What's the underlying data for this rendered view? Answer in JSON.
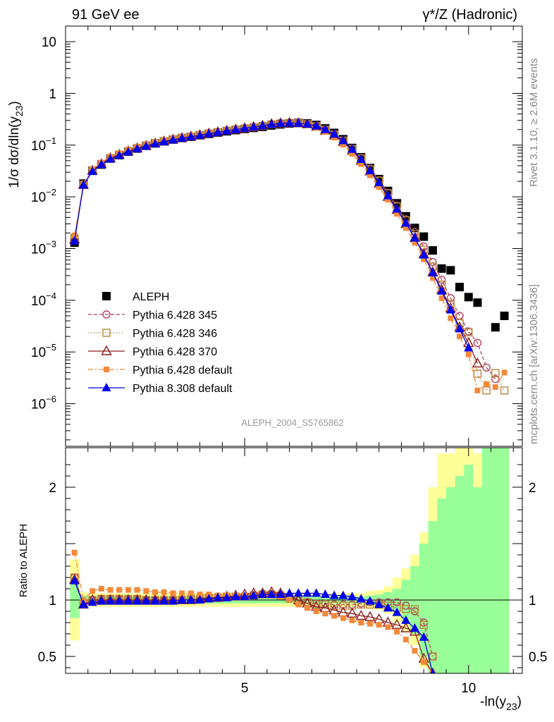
{
  "header": {
    "left": "91 GeV ee",
    "right": "γ*/Z (Hadronic)"
  },
  "side": {
    "version": "Rivet 3.1.10, ≥ 2.6M events",
    "url": "mcplots.cern.ch [arXiv:1306.3436]"
  },
  "watermark": "ALEPH_2004_S5765862",
  "chart_data": [
    {
      "type": "scatter",
      "ylabel": "1/σ  dσ/dln(y23)",
      "yscale": "log",
      "ylim": [
        1.5e-07,
        20
      ],
      "xlim": [
        1,
        11.2
      ],
      "yticks": [
        {
          "v": 10,
          "label": "10"
        },
        {
          "v": 1,
          "label": "1"
        },
        {
          "v": 0.1,
          "label": "10",
          "exp": "−1"
        },
        {
          "v": 0.01,
          "label": "10",
          "exp": "−2"
        },
        {
          "v": 0.001,
          "label": "10",
          "exp": "−3"
        },
        {
          "v": 0.0001,
          "label": "10",
          "exp": "−4"
        },
        {
          "v": 1e-05,
          "label": "10",
          "exp": "−5"
        },
        {
          "v": 1e-06,
          "label": "10",
          "exp": "−6"
        }
      ],
      "x": [
        1.2,
        1.4,
        1.6,
        1.8,
        2.0,
        2.2,
        2.4,
        2.6,
        2.8,
        3.0,
        3.2,
        3.4,
        3.6,
        3.8,
        4.0,
        4.2,
        4.4,
        4.6,
        4.8,
        5.0,
        5.2,
        5.4,
        5.6,
        5.8,
        6.0,
        6.2,
        6.4,
        6.6,
        6.8,
        7.0,
        7.2,
        7.4,
        7.6,
        7.8,
        8.0,
        8.2,
        8.4,
        8.6,
        8.8,
        9.0,
        9.2,
        9.4,
        9.6,
        9.8,
        10.0,
        10.2,
        10.4,
        10.6,
        10.8
      ],
      "series": [
        {
          "name": "ALEPH",
          "color": "#000000",
          "marker": "filled-square",
          "values": [
            0.0013,
            0.018,
            0.032,
            0.042,
            0.055,
            0.064,
            0.075,
            0.086,
            0.097,
            0.108,
            0.118,
            0.128,
            0.137,
            0.145,
            0.155,
            0.165,
            0.175,
            0.185,
            0.195,
            0.205,
            0.215,
            0.225,
            0.24,
            0.252,
            0.262,
            0.268,
            0.262,
            0.245,
            0.21,
            0.172,
            0.13,
            0.088,
            0.058,
            0.036,
            0.022,
            0.013,
            0.0075,
            0.0042,
            0.0025,
            0.0017,
            0.00092,
            0.00041,
            0.00038,
            0.00018,
            0.000115,
            9e-05,
            0,
            3e-05,
            5e-05
          ]
        },
        {
          "name": "Pythia 6.428 345",
          "color": "#b0425c",
          "marker": "open-circle",
          "line": "dashed",
          "values": [
            0.0016,
            0.017,
            0.032,
            0.043,
            0.056,
            0.065,
            0.076,
            0.087,
            0.097,
            0.108,
            0.118,
            0.128,
            0.137,
            0.146,
            0.156,
            0.168,
            0.178,
            0.19,
            0.2,
            0.21,
            0.222,
            0.235,
            0.252,
            0.262,
            0.268,
            0.265,
            0.255,
            0.232,
            0.198,
            0.16,
            0.122,
            0.085,
            0.056,
            0.035,
            0.021,
            0.012,
            0.0068,
            0.0037,
            0.0021,
            0.0011,
            0.00055,
            0.00025,
            0.00011,
            5e-05,
            2.5e-05,
            1.5e-05,
            5e-06,
            3e-06,
            0
          ]
        },
        {
          "name": "Pythia 6.428 346",
          "color": "#b8863a",
          "marker": "open-square",
          "line": "dotted",
          "values": [
            0.0016,
            0.017,
            0.032,
            0.043,
            0.056,
            0.065,
            0.076,
            0.087,
            0.097,
            0.108,
            0.118,
            0.128,
            0.137,
            0.146,
            0.156,
            0.168,
            0.178,
            0.19,
            0.2,
            0.21,
            0.222,
            0.235,
            0.252,
            0.262,
            0.268,
            0.265,
            0.255,
            0.232,
            0.198,
            0.16,
            0.122,
            0.084,
            0.055,
            0.034,
            0.0205,
            0.0117,
            0.0065,
            0.0035,
            0.0019,
            0.00095,
            0.00045,
            0.0002,
            8.5e-05,
            3.6e-05,
            2.4e-05,
            3.8e-06,
            1.8e-06,
            3.9e-06,
            1.8e-06
          ]
        },
        {
          "name": "Pythia 6.428 370",
          "color": "#8b1f1f",
          "marker": "open-triangle",
          "line": "solid",
          "values": [
            0.0015,
            0.017,
            0.032,
            0.043,
            0.056,
            0.065,
            0.076,
            0.087,
            0.097,
            0.108,
            0.118,
            0.128,
            0.137,
            0.146,
            0.156,
            0.168,
            0.178,
            0.19,
            0.2,
            0.212,
            0.224,
            0.238,
            0.255,
            0.265,
            0.27,
            0.265,
            0.253,
            0.228,
            0.192,
            0.154,
            0.115,
            0.078,
            0.05,
            0.031,
            0.018,
            0.01,
            0.0056,
            0.003,
            0.0016,
            0.00078,
            0.00035,
            0.00016,
            7e-05,
            3e-05,
            1.5e-05,
            6e-06,
            0,
            0,
            0
          ]
        },
        {
          "name": "Pythia 6.428 default",
          "color": "#f28a3a",
          "marker": "filled-square-small",
          "line": "dashdot",
          "values": [
            0.0018,
            0.018,
            0.034,
            0.046,
            0.06,
            0.07,
            0.082,
            0.094,
            0.105,
            0.116,
            0.126,
            0.136,
            0.145,
            0.154,
            0.163,
            0.172,
            0.181,
            0.192,
            0.202,
            0.212,
            0.222,
            0.233,
            0.248,
            0.258,
            0.262,
            0.256,
            0.24,
            0.215,
            0.18,
            0.14,
            0.102,
            0.068,
            0.043,
            0.026,
            0.0155,
            0.0088,
            0.0047,
            0.0025,
            0.0013,
            0.00062,
            0.00027,
            0.00011,
            4.5e-05,
            2e-05,
            9e-06,
            1.8e-06,
            2.4e-06,
            2.1e-06,
            4e-06
          ]
        },
        {
          "name": "Pythia 8.308 default",
          "color": "#0000ee",
          "marker": "filled-triangle",
          "line": "solid",
          "values": [
            0.0014,
            0.017,
            0.031,
            0.042,
            0.054,
            0.063,
            0.074,
            0.085,
            0.095,
            0.106,
            0.116,
            0.126,
            0.136,
            0.145,
            0.155,
            0.166,
            0.177,
            0.188,
            0.2,
            0.212,
            0.224,
            0.237,
            0.252,
            0.262,
            0.267,
            0.264,
            0.254,
            0.234,
            0.2,
            0.162,
            0.122,
            0.083,
            0.053,
            0.032,
            0.0188,
            0.0105,
            0.0058,
            0.0031,
            0.0016,
            0.00075,
            0.00034,
            0.00015,
            6.5e-05,
            2.8e-05,
            1.2e-05,
            0,
            0,
            0,
            0
          ]
        }
      ]
    },
    {
      "type": "scatter",
      "ylabel": "Ratio to ALEPH",
      "xlabel": "-ln(y23)",
      "ylim": [
        0.35,
        2.35
      ],
      "xlim": [
        1,
        11.2
      ],
      "yticks": [
        {
          "v": 0.5,
          "label": "0.5"
        },
        {
          "v": 1,
          "label": "1"
        },
        {
          "v": 2,
          "label": "2"
        }
      ],
      "xticks": [
        {
          "v": 5,
          "label": "5"
        },
        {
          "v": 10,
          "label": "10"
        }
      ],
      "uncertainty_bands": {
        "stat_color": "#99ff99",
        "total_color": "#ffff99",
        "bins_halfwidth": 0.1,
        "x": [
          1.2,
          1.4,
          1.6,
          1.8,
          2.0,
          2.2,
          2.4,
          2.6,
          2.8,
          3.0,
          3.2,
          3.4,
          3.6,
          3.8,
          4.0,
          4.2,
          4.4,
          4.6,
          4.8,
          5.0,
          5.2,
          5.4,
          5.6,
          5.8,
          6.0,
          6.2,
          6.4,
          6.6,
          6.8,
          7.0,
          7.2,
          7.4,
          7.6,
          7.8,
          8.0,
          8.2,
          8.4,
          8.6,
          8.8,
          9.0,
          9.2,
          9.4,
          9.6,
          9.8,
          10.0,
          10.2,
          10.4,
          10.6,
          10.8
        ],
        "stat": [
          0.16,
          0.04,
          0.03,
          0.03,
          0.03,
          0.03,
          0.03,
          0.03,
          0.03,
          0.03,
          0.03,
          0.03,
          0.03,
          0.03,
          0.03,
          0.03,
          0.03,
          0.03,
          0.03,
          0.03,
          0.03,
          0.03,
          0.03,
          0.03,
          0.03,
          0.03,
          0.03,
          0.03,
          0.03,
          0.03,
          0.03,
          0.03,
          0.03,
          0.04,
          0.05,
          0.07,
          0.1,
          0.18,
          0.3,
          0.5,
          0.7,
          0.9,
          1.0,
          1.1,
          1.2,
          1.0,
          1.6,
          1.6,
          1.6
        ],
        "total": [
          0.36,
          0.07,
          0.06,
          0.06,
          0.06,
          0.06,
          0.06,
          0.06,
          0.06,
          0.06,
          0.06,
          0.06,
          0.06,
          0.06,
          0.06,
          0.06,
          0.06,
          0.06,
          0.06,
          0.06,
          0.06,
          0.06,
          0.06,
          0.06,
          0.06,
          0.06,
          0.06,
          0.06,
          0.06,
          0.06,
          0.06,
          0.06,
          0.06,
          0.08,
          0.09,
          0.12,
          0.2,
          0.28,
          0.4,
          0.6,
          1.0,
          1.3,
          1.3,
          1.4,
          1.5,
          1.3,
          1.6,
          1.6,
          1.6
        ]
      },
      "series": [
        {
          "name": "Pythia 6.428 345",
          "color": "#b0425c",
          "marker": "open-circle",
          "line": "dashed",
          "values": [
            1.2,
            0.97,
            1.0,
            1.01,
            1.01,
            1.01,
            1.01,
            1.01,
            1.0,
            1.0,
            1.0,
            1.0,
            1.0,
            1.01,
            1.01,
            1.02,
            1.02,
            1.03,
            1.03,
            1.03,
            1.04,
            1.05,
            1.05,
            1.04,
            1.02,
            0.99,
            0.98,
            0.97,
            0.97,
            0.96,
            0.96,
            0.96,
            0.97,
            0.98,
            0.98,
            0.98,
            0.98,
            0.95,
            0.9,
            0.8,
            0.5,
            null,
            null,
            null,
            null,
            null,
            null,
            null,
            null
          ]
        },
        {
          "name": "Pythia 6.428 346",
          "color": "#b8863a",
          "marker": "open-square",
          "line": "dotted",
          "values": [
            1.2,
            0.97,
            1.0,
            1.01,
            1.01,
            1.01,
            1.01,
            1.01,
            1.0,
            1.0,
            1.0,
            1.0,
            1.0,
            1.01,
            1.01,
            1.02,
            1.02,
            1.03,
            1.03,
            1.03,
            1.04,
            1.05,
            1.05,
            1.04,
            1.02,
            0.99,
            0.98,
            0.96,
            0.96,
            0.95,
            0.95,
            0.95,
            0.96,
            0.96,
            0.96,
            0.95,
            0.93,
            0.92,
            0.92,
            0.78,
            0.5,
            null,
            null,
            null,
            null,
            null,
            null,
            null,
            null
          ]
        },
        {
          "name": "Pythia 6.428 370",
          "color": "#8b1f1f",
          "marker": "open-triangle",
          "line": "solid",
          "values": [
            1.18,
            0.96,
            1.0,
            1.0,
            1.0,
            1.0,
            1.0,
            1.0,
            1.0,
            1.0,
            1.0,
            1.0,
            1.0,
            1.0,
            1.01,
            1.02,
            1.02,
            1.03,
            1.04,
            1.05,
            1.06,
            1.06,
            1.07,
            1.06,
            1.04,
            1.0,
            0.97,
            0.94,
            0.93,
            0.91,
            0.89,
            0.88,
            0.86,
            0.85,
            0.83,
            0.8,
            0.78,
            0.75,
            0.72,
            0.48,
            0.35,
            null,
            null,
            null,
            null,
            null,
            null,
            null,
            null
          ]
        },
        {
          "name": "Pythia 6.428 default",
          "color": "#f28a3a",
          "marker": "filled-square-small",
          "line": "dashdot",
          "values": [
            1.42,
            1.0,
            1.08,
            1.1,
            1.09,
            1.09,
            1.09,
            1.09,
            1.08,
            1.07,
            1.07,
            1.06,
            1.06,
            1.06,
            1.05,
            1.05,
            1.04,
            1.04,
            1.04,
            1.04,
            1.04,
            1.04,
            1.04,
            1.03,
            1.0,
            0.96,
            0.93,
            0.9,
            0.88,
            0.86,
            0.84,
            0.82,
            0.8,
            0.79,
            0.78,
            0.76,
            0.72,
            0.65,
            0.55,
            0.45,
            0.35,
            null,
            null,
            null,
            null,
            null,
            null,
            null,
            null
          ]
        },
        {
          "name": "Pythia 8.308 default",
          "color": "#0000ee",
          "marker": "filled-triangle",
          "line": "solid",
          "values": [
            1.17,
            0.96,
            0.98,
            0.99,
            0.99,
            0.99,
            0.99,
            0.99,
            0.99,
            0.99,
            0.99,
            0.99,
            1.0,
            1.0,
            1.0,
            1.01,
            1.02,
            1.02,
            1.03,
            1.03,
            1.04,
            1.05,
            1.05,
            1.05,
            1.06,
            1.06,
            1.06,
            1.06,
            1.05,
            1.04,
            1.04,
            1.03,
            1.01,
            0.99,
            0.96,
            0.93,
            0.89,
            0.82,
            0.75,
            0.67,
            0.35,
            null,
            null,
            null,
            null,
            null,
            null,
            null,
            null
          ]
        }
      ]
    }
  ]
}
